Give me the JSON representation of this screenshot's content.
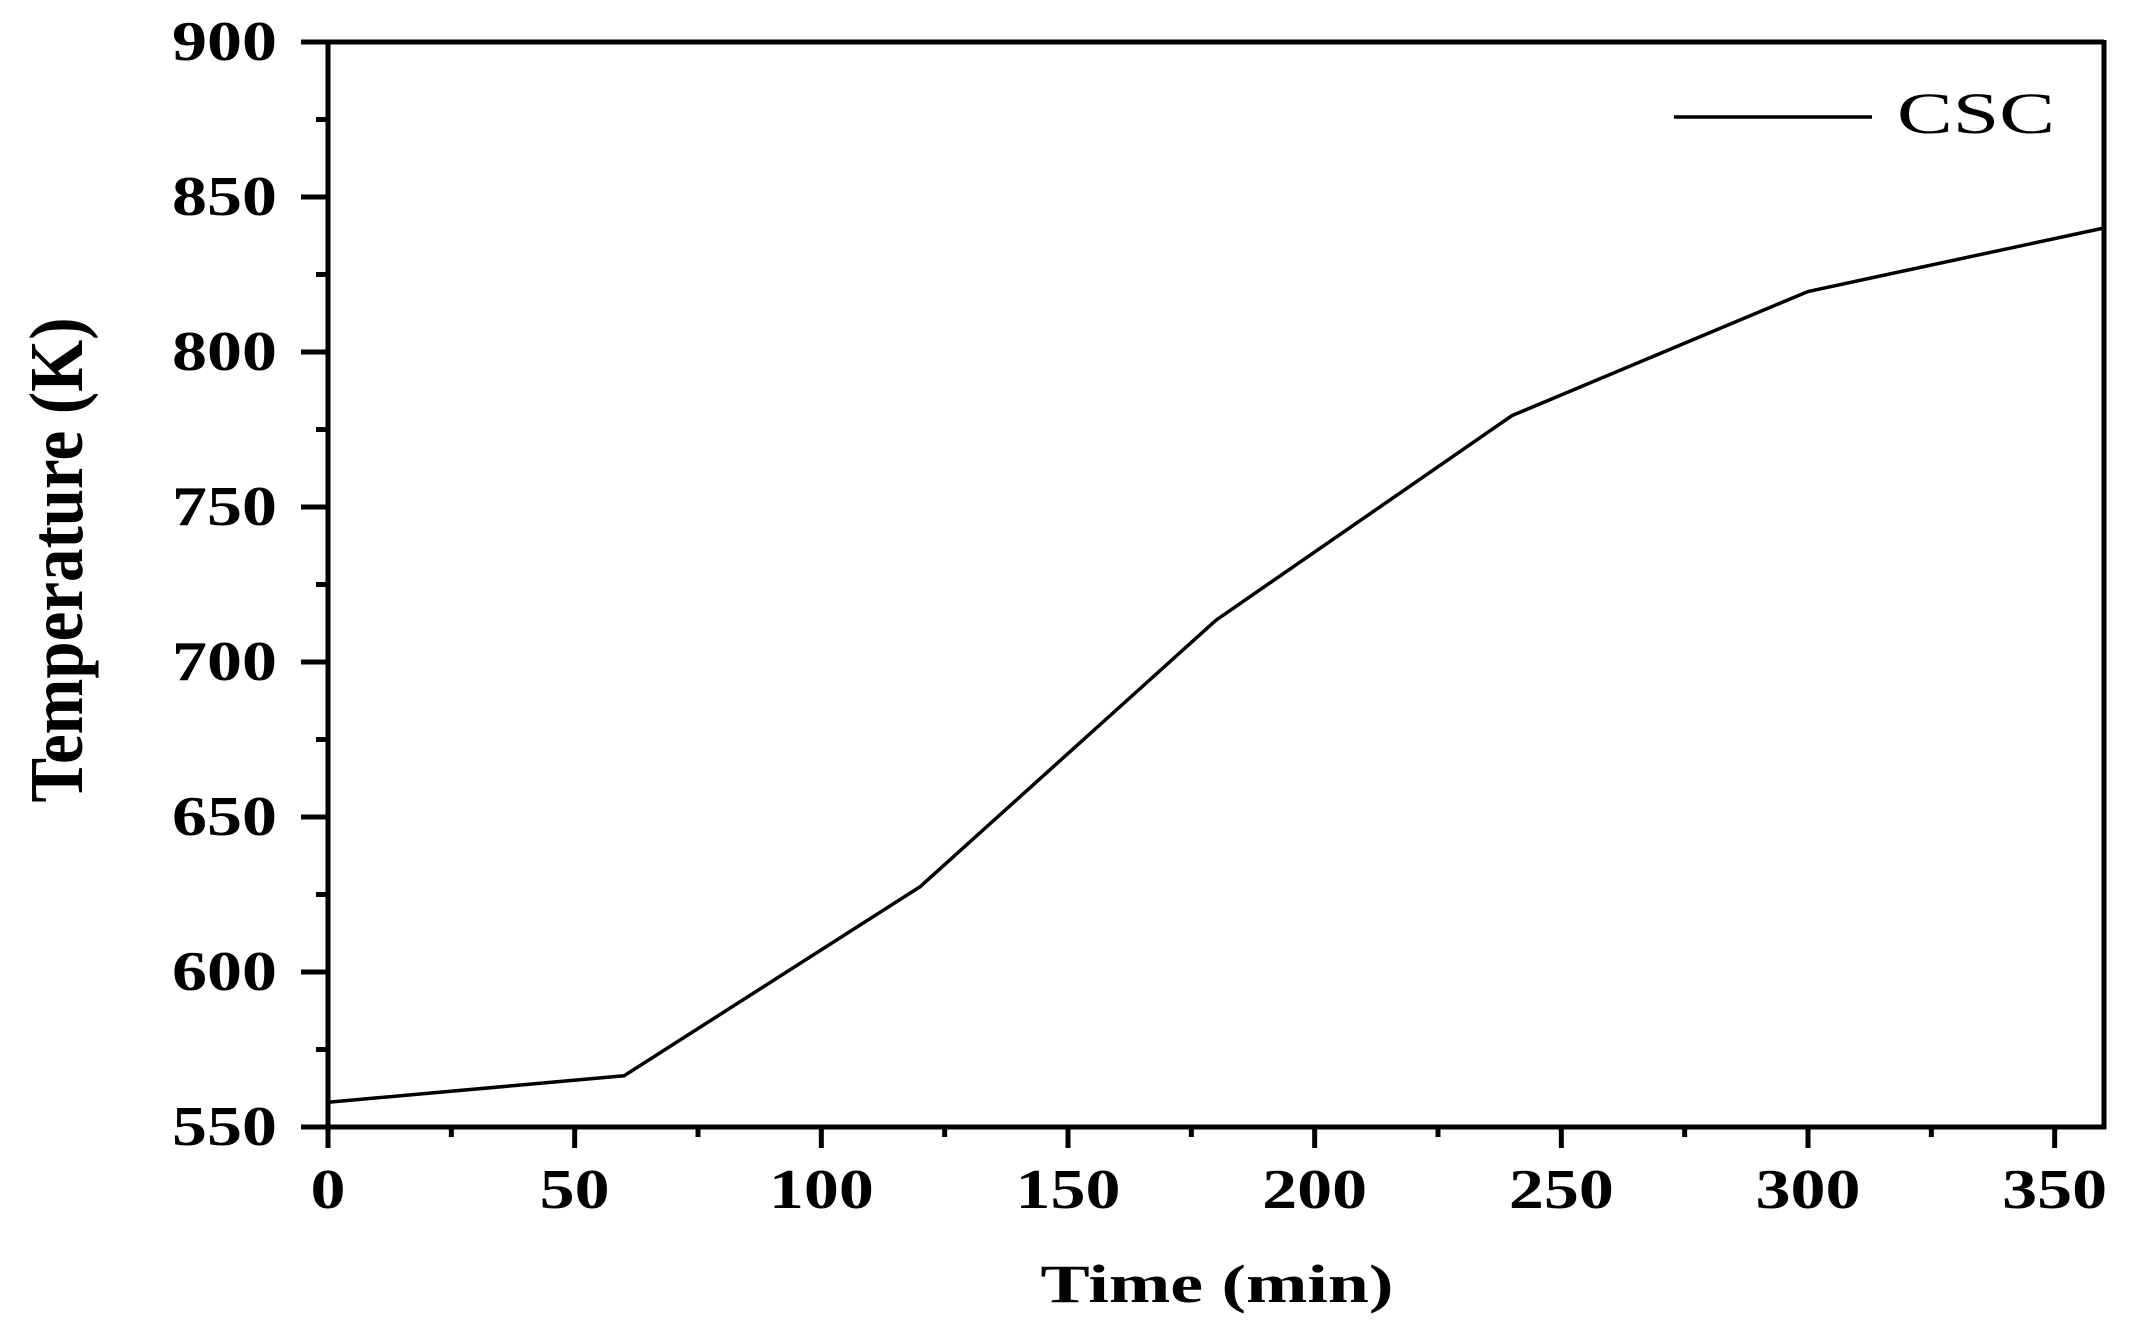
{
  "chart_data": {
    "type": "line",
    "title": "",
    "xlabel": "Time (min)",
    "ylabel": "Temperature (K)",
    "xlim": [
      0,
      360
    ],
    "ylim": [
      550,
      900
    ],
    "x_ticks": [
      0,
      50,
      100,
      150,
      200,
      250,
      300,
      350
    ],
    "y_ticks": [
      550,
      600,
      650,
      700,
      750,
      800,
      850,
      900
    ],
    "x_tick_labels": [
      "0",
      "50",
      "100",
      "150",
      "200",
      "250",
      "300",
      "350"
    ],
    "y_tick_labels": [
      "550",
      "600",
      "650",
      "700",
      "750",
      "800",
      "850",
      "900"
    ],
    "x_minor_step": 25,
    "y_minor_step": 25,
    "grid": false,
    "legend_position": "upper right",
    "x": [
      0,
      60,
      120,
      180,
      240,
      300,
      360
    ],
    "series": [
      {
        "name": "CSC",
        "color": "#000000",
        "values": [
          558,
          566.5,
          627.5,
          713.5,
          779.5,
          819.5,
          840
        ]
      }
    ]
  },
  "legend": {
    "items": [
      {
        "label": "CSC",
        "color": "#000000"
      }
    ]
  }
}
